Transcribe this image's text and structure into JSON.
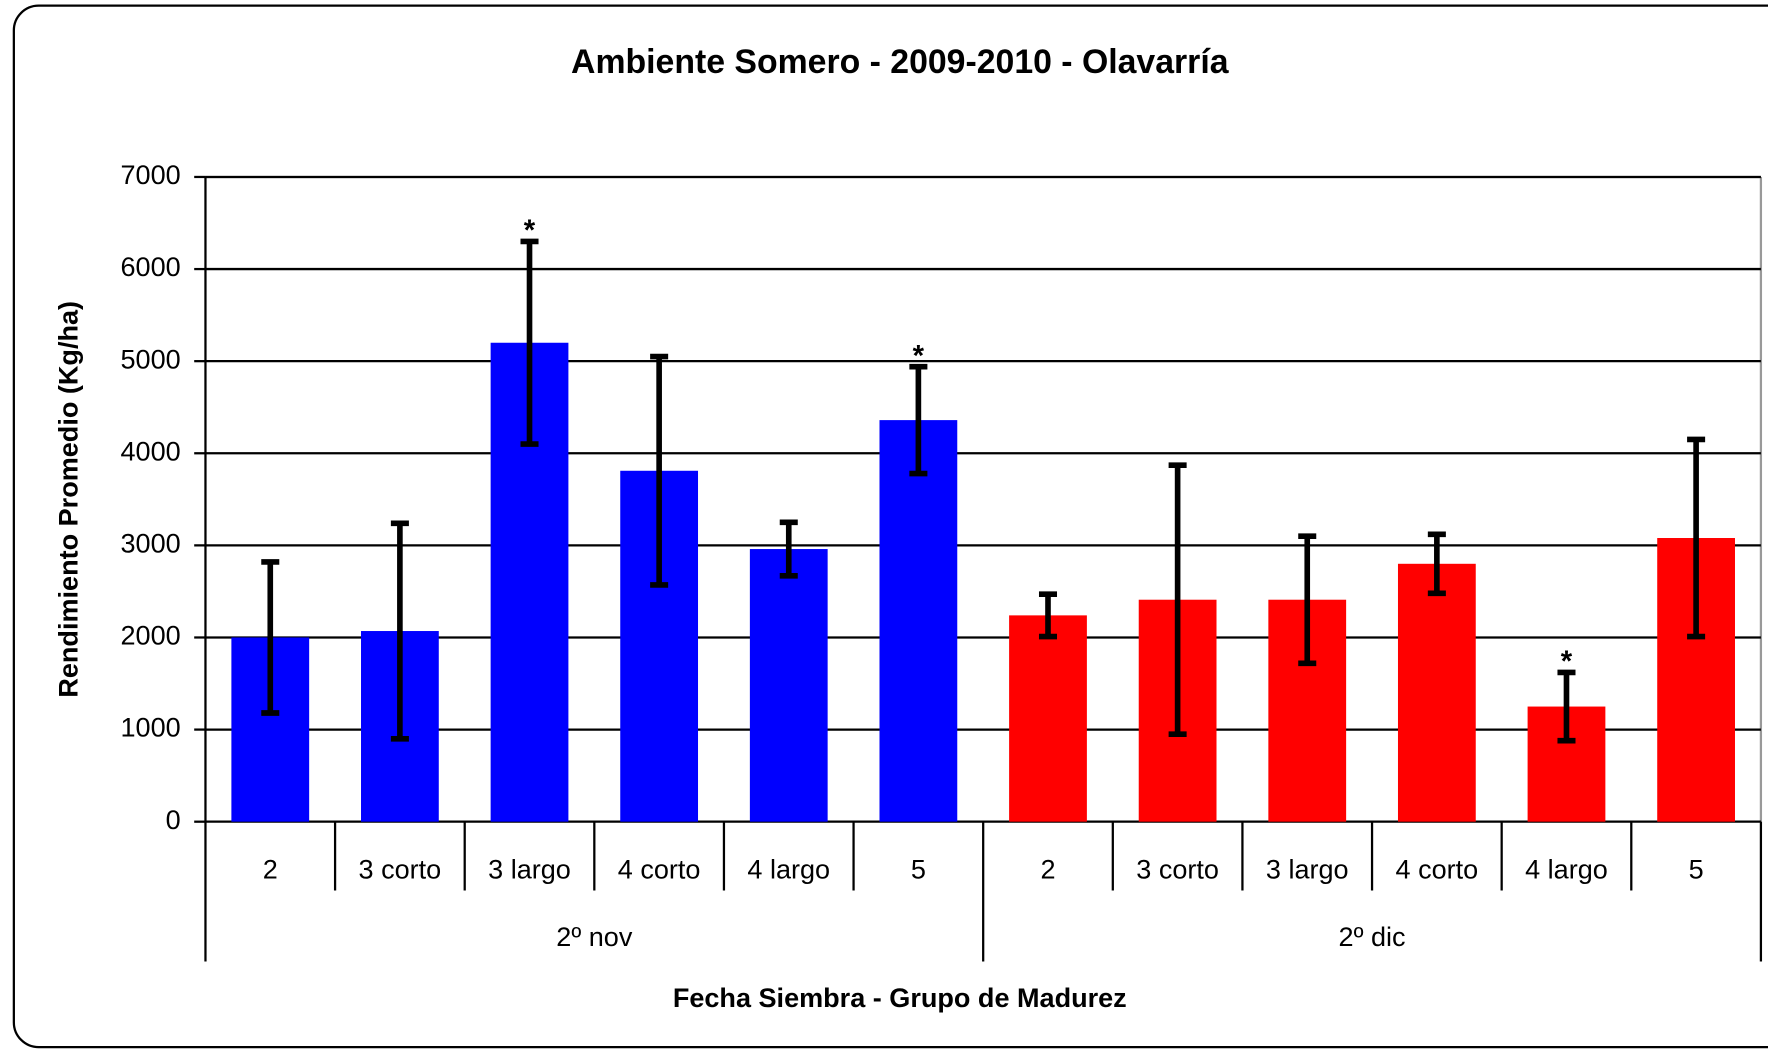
{
  "chart_data": {
    "type": "bar",
    "title": "Ambiente Somero - 2009-2010 - Olavarría",
    "x_label": "Fecha Siembra - Grupo de Madurez",
    "y_label": "Rendimiento Promedio (Kg/ha)",
    "categories": [
      "2",
      "3 corto",
      "3 largo",
      "4 corto",
      "4 largo",
      "5"
    ],
    "series": [
      {
        "name": "2º nov",
        "color": "#0000ff",
        "values": [
          2000,
          2070,
          5200,
          3810,
          2960,
          4360
        ],
        "errors": [
          820,
          1170,
          1100,
          1240,
          290,
          580
        ]
      },
      {
        "name": "2º dic",
        "color": "#ff0000",
        "values": [
          2240,
          2410,
          2410,
          2800,
          1250,
          3080
        ],
        "errors": [
          230,
          1460,
          690,
          320,
          370,
          1070
        ]
      }
    ],
    "annotations": [
      {
        "text": "*",
        "series": 0,
        "index": 2
      },
      {
        "text": "*",
        "series": 0,
        "index": 5
      },
      {
        "text": "*",
        "series": 1,
        "index": 4
      }
    ],
    "ylim": [
      0,
      7000
    ],
    "yticks": [
      0,
      1000,
      2000,
      3000,
      4000,
      5000,
      6000,
      7000
    ],
    "grid": true
  }
}
